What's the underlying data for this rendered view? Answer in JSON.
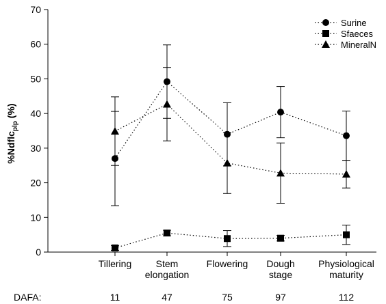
{
  "chart_data": {
    "type": "line",
    "categories": [
      [
        "Tillering"
      ],
      [
        "Stem",
        "elongation"
      ],
      [
        "Flowering"
      ],
      [
        "Dough",
        "stage"
      ],
      [
        "Physiological",
        "maturity"
      ]
    ],
    "ylabel_main": "%Ndflc",
    "ylabel_sub": "plp",
    "ylabel_unit": " (%)",
    "ylim": [
      0,
      70
    ],
    "yticks": [
      0,
      10,
      20,
      30,
      40,
      50,
      60,
      70
    ],
    "secondary_row": {
      "label": "DAFA:",
      "values": [
        "11",
        "47",
        "75",
        "97",
        "112"
      ]
    },
    "legend_position": "top-right",
    "series": [
      {
        "name": "Surine",
        "marker": "circle",
        "values": [
          27.0,
          49.2,
          34.0,
          40.4,
          33.6
        ],
        "errors": [
          13.6,
          10.6,
          9.1,
          7.4,
          7.1
        ]
      },
      {
        "name": "Sfaeces",
        "marker": "square",
        "values": [
          1.2,
          5.5,
          3.9,
          4.0,
          5.0
        ],
        "errors": [
          0.7,
          0.8,
          2.3,
          0.8,
          2.8
        ]
      },
      {
        "name": "MineralN",
        "marker": "triangle",
        "values": [
          34.9,
          42.7,
          25.7,
          22.8,
          22.5
        ],
        "errors": [
          9.9,
          10.6,
          8.8,
          8.7,
          4.0
        ]
      }
    ]
  }
}
